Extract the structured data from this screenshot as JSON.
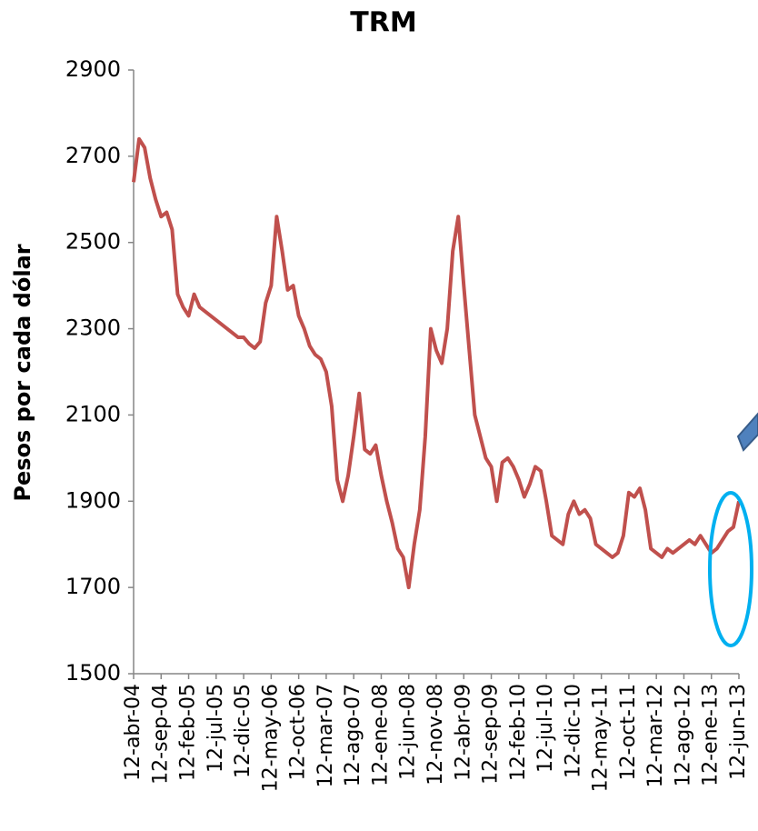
{
  "chart_data": {
    "type": "line",
    "title": "TRM",
    "y_label": "Pesos por cada dólar",
    "categories": [
      "12-abr-04",
      null,
      null,
      null,
      null,
      "12-sep-04",
      null,
      null,
      null,
      null,
      "12-feb-05",
      null,
      null,
      null,
      null,
      "12-jul-05",
      null,
      null,
      null,
      null,
      "12-dic-05",
      null,
      null,
      null,
      null,
      "12-may-06",
      null,
      null,
      null,
      null,
      "12-oct-06",
      null,
      null,
      null,
      null,
      "12-mar-07",
      null,
      null,
      null,
      null,
      "12-ago-07",
      null,
      null,
      null,
      null,
      "12-ene-08",
      null,
      null,
      null,
      null,
      "12-jun-08",
      null,
      null,
      null,
      null,
      "12-nov-08",
      null,
      null,
      null,
      null,
      "12-abr-09",
      null,
      null,
      null,
      null,
      "12-sep-09",
      null,
      null,
      null,
      null,
      "12-feb-10",
      null,
      null,
      null,
      null,
      "12-jul-10",
      null,
      null,
      null,
      null,
      "12-dic-10",
      null,
      null,
      null,
      null,
      "12-may-11",
      null,
      null,
      null,
      null,
      "12-oct-11",
      null,
      null,
      null,
      null,
      "12-mar-12",
      null,
      null,
      null,
      null,
      "12-ago-12",
      null,
      null,
      null,
      null,
      "12-ene-13",
      null,
      null,
      null,
      null,
      "12-jun-13"
    ],
    "series": [
      {
        "name": "TRM",
        "color": "#c0504d",
        "values": [
          2640,
          2740,
          2720,
          2650,
          2600,
          2560,
          2570,
          2530,
          2380,
          2350,
          2330,
          2380,
          2350,
          2340,
          2330,
          2320,
          2310,
          2300,
          2290,
          2280,
          2280,
          2265,
          2255,
          2270,
          2360,
          2400,
          2560,
          2480,
          2390,
          2400,
          2330,
          2300,
          2260,
          2240,
          2230,
          2200,
          2120,
          1950,
          1900,
          1960,
          2050,
          2150,
          2020,
          2010,
          2030,
          1960,
          1900,
          1850,
          1790,
          1770,
          1700,
          1800,
          1880,
          2050,
          2300,
          2250,
          2220,
          2300,
          2480,
          2560,
          2400,
          2250,
          2100,
          2050,
          2000,
          1980,
          1900,
          1990,
          2000,
          1980,
          1950,
          1910,
          1940,
          1980,
          1970,
          1900,
          1820,
          1810,
          1800,
          1870,
          1900,
          1870,
          1880,
          1860,
          1800,
          1790,
          1780,
          1770,
          1780,
          1820,
          1920,
          1910,
          1930,
          1880,
          1790,
          1780,
          1770,
          1790,
          1780,
          1790,
          1800,
          1810,
          1800,
          1820,
          1800,
          1780,
          1790,
          1810,
          1830,
          1840,
          1900
        ]
      }
    ],
    "ylim": [
      1500,
      2900
    ],
    "yticks": [
      1500,
      1700,
      1900,
      2100,
      2300,
      2500,
      2700,
      2900
    ]
  }
}
